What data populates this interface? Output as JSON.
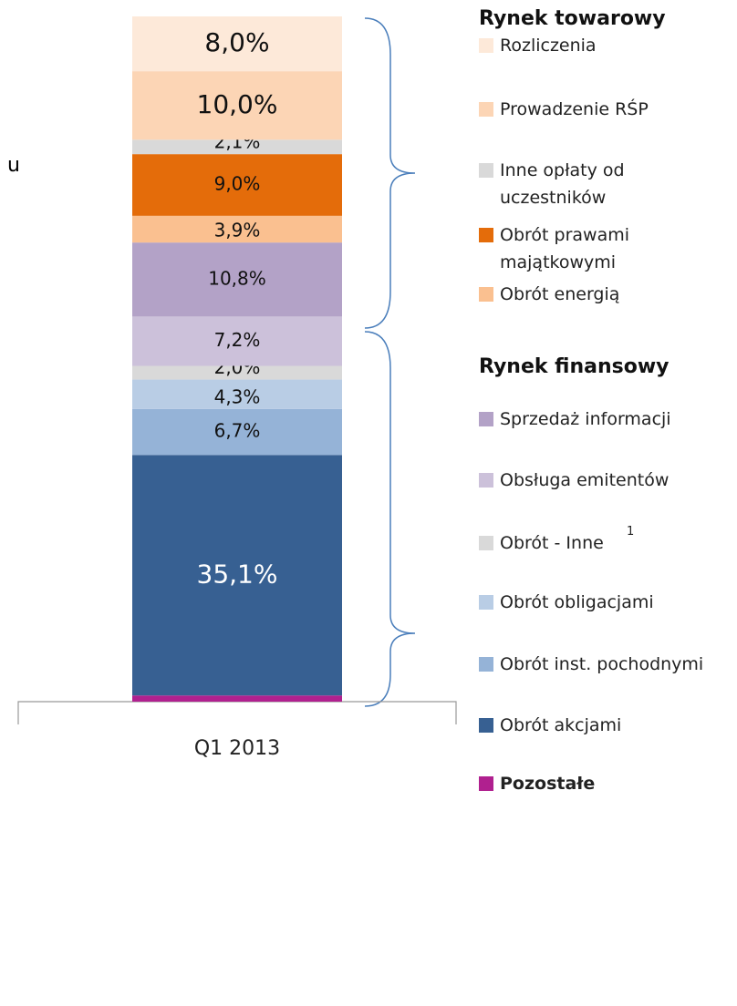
{
  "chart_data": {
    "type": "stacked_bar",
    "categories": [
      "Q1 2013"
    ],
    "legend_headers": [
      "Rynek towarowy",
      "Rynek finansowy"
    ],
    "footnote": "1",
    "side_text": "u",
    "series": [
      {
        "name": "Pozostałe",
        "color": "#b0208f",
        "values": [
          0.9
        ],
        "value_labels": [
          "0,9%"
        ]
      },
      {
        "name": "Obrót akcjami",
        "color": "#376092",
        "values": [
          35.1
        ],
        "value_labels": [
          "35,1%"
        ]
      },
      {
        "name": "Obrót inst. pochodnymi",
        "color": "#95b3d7",
        "values": [
          6.7
        ],
        "value_labels": [
          "6,7%"
        ]
      },
      {
        "name": "Obrót obligacjami",
        "color": "#b9cde5",
        "values": [
          4.3
        ],
        "value_labels": [
          "4,3%"
        ]
      },
      {
        "name": "Obrót - Inne",
        "color": "#d9d9d9",
        "values": [
          2.0
        ],
        "value_labels": [
          "2,0%"
        ]
      },
      {
        "name": "Obsługa emitentów",
        "color": "#ccc1da",
        "values": [
          7.2
        ],
        "value_labels": [
          "7,2%"
        ]
      },
      {
        "name": "Sprzedaż informacji",
        "color": "#b3a2c7",
        "values": [
          10.8
        ],
        "value_labels": [
          "10,8%"
        ]
      },
      {
        "name": "Obrót energią",
        "color": "#fac090",
        "values": [
          3.9
        ],
        "value_labels": [
          "3,9%"
        ]
      },
      {
        "name": "Obrót prawami majątkowymi",
        "color": "#e46c0a",
        "values": [
          9.0
        ],
        "value_labels": [
          "9,0%"
        ]
      },
      {
        "name": "Inne opłaty od uczestników",
        "color": "#d9d9d9",
        "values": [
          2.1
        ],
        "value_labels": [
          "2,1%"
        ]
      },
      {
        "name": "Prowadzenie RŚP",
        "color": "#fcd5b5",
        "values": [
          10.0
        ],
        "value_labels": [
          "10,0%"
        ]
      },
      {
        "name": "Rozliczenia",
        "color": "#fde9d9",
        "values": [
          8.0
        ],
        "value_labels": [
          "8,0%"
        ]
      }
    ],
    "ylim": [
      0,
      100
    ]
  }
}
